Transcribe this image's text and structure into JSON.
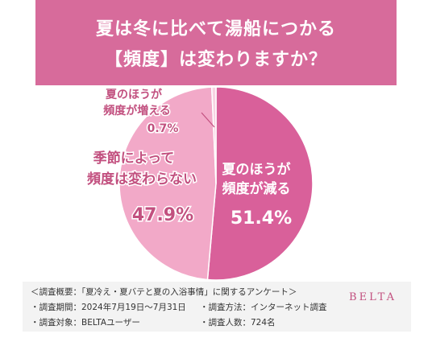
{
  "header": {
    "title_line1": "夏は冬に比べて湯船につかる",
    "title_line2": "【頻度】は変わりますか？"
  },
  "colors": {
    "header_bg": "#d76b9b",
    "slice_decrease": "#d9609a",
    "slice_same": "#f2a9c8",
    "slice_increase": "#f8d3e2",
    "label_dark": "#c2507f",
    "label_light": "#ffffff"
  },
  "chart_data": {
    "type": "pie",
    "slices": [
      {
        "label_line1": "夏のほうが",
        "label_line2": "頻度が減る",
        "value": 51.4,
        "value_label": "51.4%"
      },
      {
        "label_line1": "季節によって",
        "label_line2": "頻度は変わらない",
        "value": 47.9,
        "value_label": "47.9%"
      },
      {
        "label_line1": "夏のほうが",
        "label_line2": "頻度が増える",
        "value": 0.7,
        "value_label": "0.7%"
      }
    ]
  },
  "footer": {
    "survey_name": "＜調査概要：「夏冷え・夏バテと夏の入浴事情」に関するアンケート＞",
    "period": "・調査期間：2024年7月19日〜7月31日",
    "method": "・調査方法：インターネット調査",
    "target": "・調査対象：BELTAユーザー",
    "count": "・調査人数：724名",
    "brand": "BELTA"
  }
}
